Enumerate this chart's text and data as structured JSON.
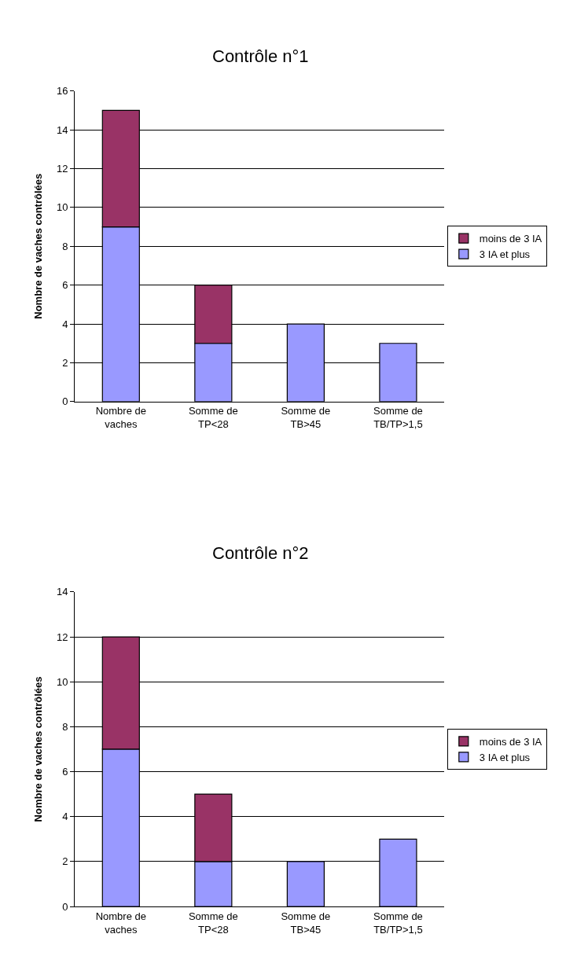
{
  "chart_data": [
    {
      "type": "bar",
      "title": "Contrôle n°1",
      "ylabel": "Nombre de vaches contrôlées",
      "stacked": true,
      "grid": "y",
      "legend": "right",
      "categories": [
        "Nombre de vaches",
        "Somme de TP<28",
        "Somme de TB>45",
        "Somme de TB/TP>1,5"
      ],
      "series": [
        {
          "name": "3 IA et plus",
          "color": "#9999ff",
          "values": [
            9,
            3,
            4,
            3
          ]
        },
        {
          "name": "moins de 3 IA",
          "color": "#993366",
          "values": [
            6,
            3,
            null,
            null
          ]
        }
      ],
      "ylim": [
        0,
        16
      ],
      "yticks": [
        0,
        2,
        4,
        6,
        8,
        10,
        12,
        14,
        16
      ]
    },
    {
      "type": "bar",
      "title": "Contrôle n°2",
      "ylabel": "Nombre de vaches contrôlées",
      "stacked": true,
      "grid": "y",
      "legend": "right",
      "categories": [
        "Nombre de vaches",
        "Somme de TP<28",
        "Somme de TB>45",
        "Somme de TB/TP>1,5"
      ],
      "series": [
        {
          "name": "3 IA et plus",
          "color": "#9999ff",
          "values": [
            7,
            2,
            2,
            3
          ]
        },
        {
          "name": "moins de 3 IA",
          "color": "#993366",
          "values": [
            5,
            3,
            null,
            null
          ]
        }
      ],
      "ylim": [
        0,
        14
      ],
      "yticks": [
        0,
        2,
        4,
        6,
        8,
        10,
        12,
        14
      ]
    }
  ]
}
